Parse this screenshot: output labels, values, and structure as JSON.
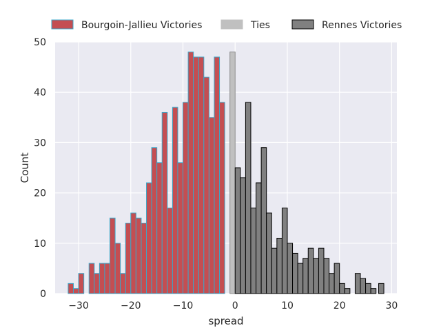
{
  "chart_data": {
    "type": "bar",
    "subtype": "histogram",
    "xlabel": "spread",
    "ylabel": "Count",
    "xlim": [
      -34.5,
      31
    ],
    "ylim": [
      0,
      50
    ],
    "xticks": [
      -30,
      -20,
      -10,
      0,
      10,
      20,
      30
    ],
    "yticks": [
      0,
      10,
      20,
      30,
      40,
      50
    ],
    "grid": true,
    "legend": "top",
    "bin_width": 1,
    "series": [
      {
        "name": "Bourgoin-Jallieu Victories",
        "color": "#c44e52",
        "edge_color": "#3ba7c9",
        "bin_starts": [
          -32,
          -31,
          -30,
          -29,
          -28,
          -27,
          -26,
          -25,
          -24,
          -23,
          -22,
          -21,
          -20,
          -19,
          -18,
          -17,
          -16,
          -15,
          -14,
          -13,
          -12,
          -11,
          -10,
          -9,
          -8,
          -7,
          -6,
          -5,
          -4,
          -3,
          -2,
          -1
        ],
        "values": [
          2,
          1,
          4,
          0,
          6,
          4,
          6,
          6,
          15,
          10,
          4,
          14,
          16,
          15,
          14,
          22,
          29,
          26,
          36,
          17,
          37,
          26,
          38,
          48,
          47,
          47,
          43,
          35,
          47,
          38,
          0,
          0
        ]
      },
      {
        "name": "Ties",
        "color": "#c0c0c0",
        "edge_color": "#8c8c8c",
        "bin_starts": [
          -1
        ],
        "values": [
          48
        ]
      },
      {
        "name": "Rennes Victories",
        "color": "#808080",
        "edge_color": "#000000",
        "bin_starts": [
          0,
          1,
          2,
          3,
          4,
          5,
          6,
          7,
          8,
          9,
          10,
          11,
          12,
          13,
          14,
          15,
          16,
          17,
          18,
          19,
          20,
          21,
          22,
          23,
          24,
          25,
          26,
          27
        ],
        "values": [
          25,
          23,
          38,
          17,
          22,
          29,
          16,
          9,
          11,
          17,
          10,
          8,
          6,
          7,
          9,
          7,
          9,
          7,
          4,
          6,
          2,
          1,
          0,
          4,
          3,
          2,
          1,
          0
        ]
      }
    ],
    "extra_bins": [
      {
        "series": "Rennes Victories",
        "bin_start": 27.5,
        "value": 2
      }
    ]
  }
}
